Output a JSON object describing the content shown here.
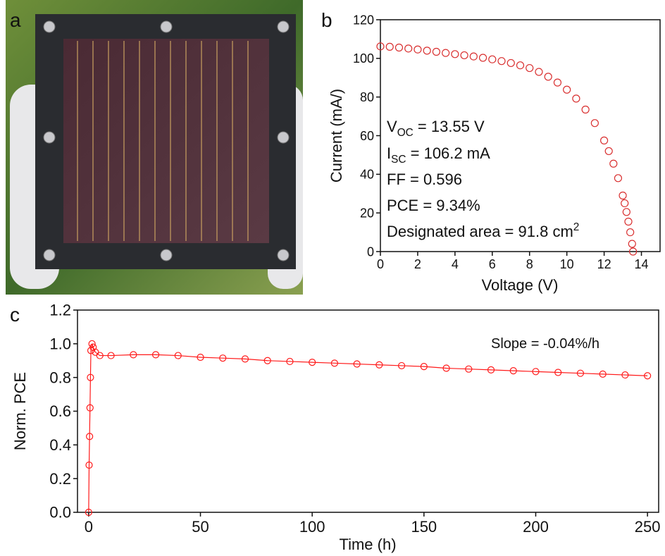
{
  "figure": {
    "panel_labels": [
      "a",
      "b",
      "c"
    ]
  },
  "chart_data": [
    {
      "type": "scatter",
      "x_label": "Voltage (V)",
      "y_label": "Current (mA/)",
      "color": "#d93030",
      "line": false,
      "xlim": [
        0,
        15
      ],
      "ylim": [
        0,
        120
      ],
      "xticks": [
        0,
        2,
        4,
        6,
        8,
        10,
        12,
        14
      ],
      "yticks": [
        0,
        20,
        40,
        60,
        80,
        100,
        120
      ],
      "grid": false,
      "annotations": [
        [
          {
            "text": "V"
          },
          {
            "text": "OC",
            "sub": true
          },
          {
            "text": " = 13.55 V"
          }
        ],
        [
          {
            "text": "I"
          },
          {
            "text": "SC",
            "sub": true
          },
          {
            "text": " = 106.2 mA"
          }
        ],
        [
          {
            "text": "FF = 0.596"
          }
        ],
        [
          {
            "text": "PCE = 9.34%"
          }
        ],
        [
          {
            "text": "Designated area = 91.8 cm"
          },
          {
            "text": "2",
            "sup": true
          }
        ]
      ],
      "x": [
        0,
        0.5,
        1,
        1.5,
        2,
        2.5,
        3,
        3.5,
        4,
        4.5,
        5,
        5.5,
        6,
        6.5,
        7,
        7.5,
        8,
        8.5,
        9,
        9.5,
        10,
        10.5,
        11,
        11.5,
        12,
        12.25,
        12.5,
        12.75,
        13,
        13.1,
        13.2,
        13.3,
        13.4,
        13.5,
        13.55
      ],
      "values": [
        106.2,
        106.0,
        105.6,
        105.1,
        104.6,
        104.0,
        103.4,
        102.8,
        102.2,
        101.6,
        101.0,
        100.3,
        99.5,
        98.6,
        97.6,
        96.4,
        95.0,
        93.0,
        90.5,
        87.5,
        83.8,
        79.2,
        73.5,
        66.5,
        57.5,
        52,
        45.5,
        38,
        29,
        25,
        20.5,
        15.5,
        10,
        4,
        0
      ]
    },
    {
      "type": "scatter",
      "x_label": "Time (h)",
      "y_label": "Norm. PCE",
      "color": "#ff1a1a",
      "line": true,
      "xlim": [
        -5,
        255
      ],
      "ylim": [
        0,
        1.2
      ],
      "xticks": [
        0,
        50,
        100,
        150,
        200,
        250
      ],
      "yticks": [
        {
          "value": 0,
          "label": "0.0"
        },
        0.2,
        0.4,
        0.6,
        0.8,
        {
          "value": 1,
          "label": "1.0"
        },
        1.2
      ],
      "grid": false,
      "annotations": [
        [
          {
            "text": "Slope = -0.04%/h"
          }
        ]
      ],
      "x": [
        0,
        0.2,
        0.4,
        0.6,
        0.8,
        1,
        1.5,
        2,
        3,
        5,
        10,
        20,
        30,
        40,
        50,
        60,
        70,
        80,
        90,
        100,
        110,
        120,
        130,
        140,
        150,
        160,
        170,
        180,
        190,
        200,
        210,
        220,
        230,
        240,
        250
      ],
      "values": [
        0,
        0.28,
        0.45,
        0.62,
        0.8,
        0.96,
        1.0,
        0.98,
        0.95,
        0.93,
        0.93,
        0.935,
        0.935,
        0.93,
        0.92,
        0.915,
        0.91,
        0.9,
        0.895,
        0.89,
        0.885,
        0.88,
        0.875,
        0.87,
        0.865,
        0.855,
        0.85,
        0.845,
        0.84,
        0.835,
        0.83,
        0.825,
        0.82,
        0.815,
        0.81
      ]
    }
  ]
}
